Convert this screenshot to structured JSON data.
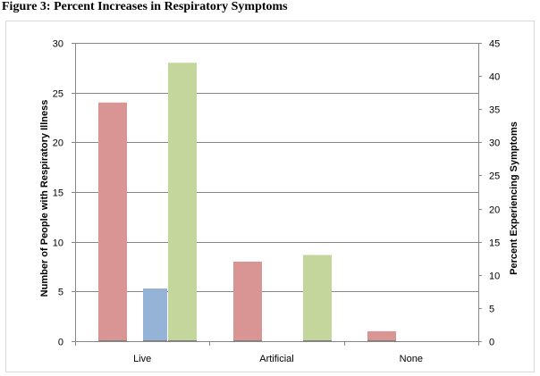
{
  "figure": {
    "title": "Figure 3: Percent Increases in Respiratory Symptoms"
  },
  "chart_data": {
    "type": "bar",
    "title": "",
    "categories": [
      "Live",
      "Artificial",
      "None"
    ],
    "left_axis": {
      "label": "Number of People with Respiratory Illness",
      "ylim": [
        0,
        30
      ],
      "ticks": [
        "0",
        "5",
        "10",
        "15",
        "20",
        "25",
        "30"
      ]
    },
    "right_axis": {
      "label": "Percent Experiencing Symptoms",
      "ylim": [
        0,
        45
      ],
      "ticks": [
        "0",
        "5",
        "10",
        "15",
        "20",
        "25",
        "30",
        "35",
        "40",
        "45"
      ]
    },
    "series": [
      {
        "axis": "left",
        "color": "#d99594",
        "values": [
          24,
          8,
          1
        ]
      },
      {
        "axis": "left",
        "color": "#95b3d7",
        "values": [
          5.3,
          0,
          0
        ]
      },
      {
        "axis": "right",
        "color": "#c3d69b",
        "values": [
          42,
          13,
          0
        ]
      }
    ],
    "grid": true,
    "legend": "none"
  }
}
